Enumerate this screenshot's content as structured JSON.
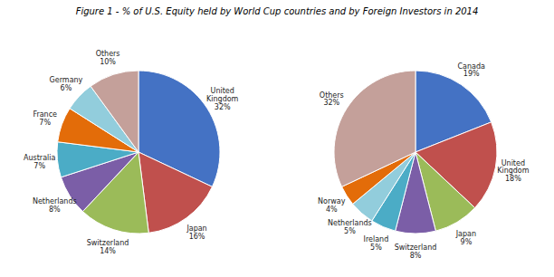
{
  "title": "Figure 1 - % of U.S. Equity held by World Cup countries and by Foreign Investors in 2014",
  "chart_data": [
    {
      "type": "pie",
      "categories": [
        "United\nKingdom\n32%",
        "Japan\n16%",
        "Switzerland\n14%",
        "Netherlands\n8%",
        "Australia\n7%",
        "France\n7%",
        "Germany\n6%",
        "Others\n10%"
      ],
      "values": [
        32,
        16,
        14,
        8,
        7,
        7,
        6,
        10
      ],
      "colors": [
        "#4472C4",
        "#C0504D",
        "#9BBB59",
        "#7B5EA7",
        "#4BACC6",
        "#E36C09",
        "#92CDDC",
        "#C4A09A"
      ]
    },
    {
      "type": "pie",
      "categories": [
        "Canada\n19%",
        "United\nKingdom\n18%",
        "Japan\n9%",
        "Switzerland\n8%",
        "Ireland\n5%",
        "Netherlands\n5%",
        "Norway\n4%",
        "Others\n32%"
      ],
      "values": [
        19,
        18,
        9,
        8,
        5,
        5,
        4,
        32
      ],
      "colors": [
        "#4472C4",
        "#C0504D",
        "#9BBB59",
        "#7B5EA7",
        "#4BACC6",
        "#92CDDC",
        "#E36C09",
        "#C4A09A"
      ]
    }
  ]
}
